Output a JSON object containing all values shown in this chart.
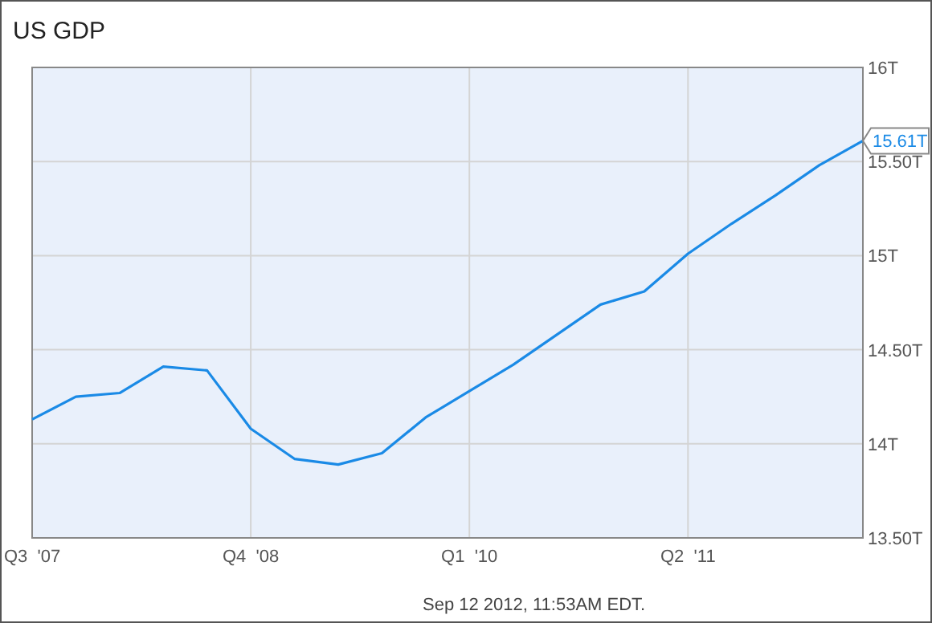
{
  "chart_data": {
    "type": "line",
    "title": "US GDP",
    "categories": [
      "Q3  '07",
      null,
      null,
      null,
      null,
      "Q4  '08",
      null,
      null,
      null,
      null,
      "Q1  '10",
      null,
      null,
      null,
      null,
      "Q2  '11",
      null,
      null,
      null,
      null
    ],
    "series": [
      {
        "color": "#1a8ae6",
        "values": [
          14.13,
          14.25,
          14.27,
          14.41,
          14.39,
          14.08,
          13.92,
          13.89,
          13.95,
          14.14,
          14.28,
          14.42,
          14.58,
          14.74,
          14.81,
          15.01,
          15.17,
          15.32,
          15.48,
          15.61
        ],
        "value_labels": [
          null,
          null,
          null,
          null,
          null,
          null,
          null,
          null,
          null,
          null,
          null,
          null,
          null,
          null,
          null,
          null,
          null,
          null,
          null,
          "15.61T"
        ]
      }
    ],
    "ylim": [
      13.5,
      16
    ],
    "yticks": [
      {
        "value": 13.5,
        "label": "13.50T"
      },
      {
        "value": 14,
        "label": "14T"
      },
      {
        "value": 14.5,
        "label": "14.50T"
      },
      {
        "value": 15,
        "label": "15T"
      },
      {
        "value": 15.5,
        "label": "15.50T"
      },
      {
        "value": 16,
        "label": "16T"
      }
    ],
    "grid": true,
    "marker": "none",
    "line_style": "solid",
    "annotations": [
      "Sep 12 2012, 11:53AM EDT."
    ]
  }
}
